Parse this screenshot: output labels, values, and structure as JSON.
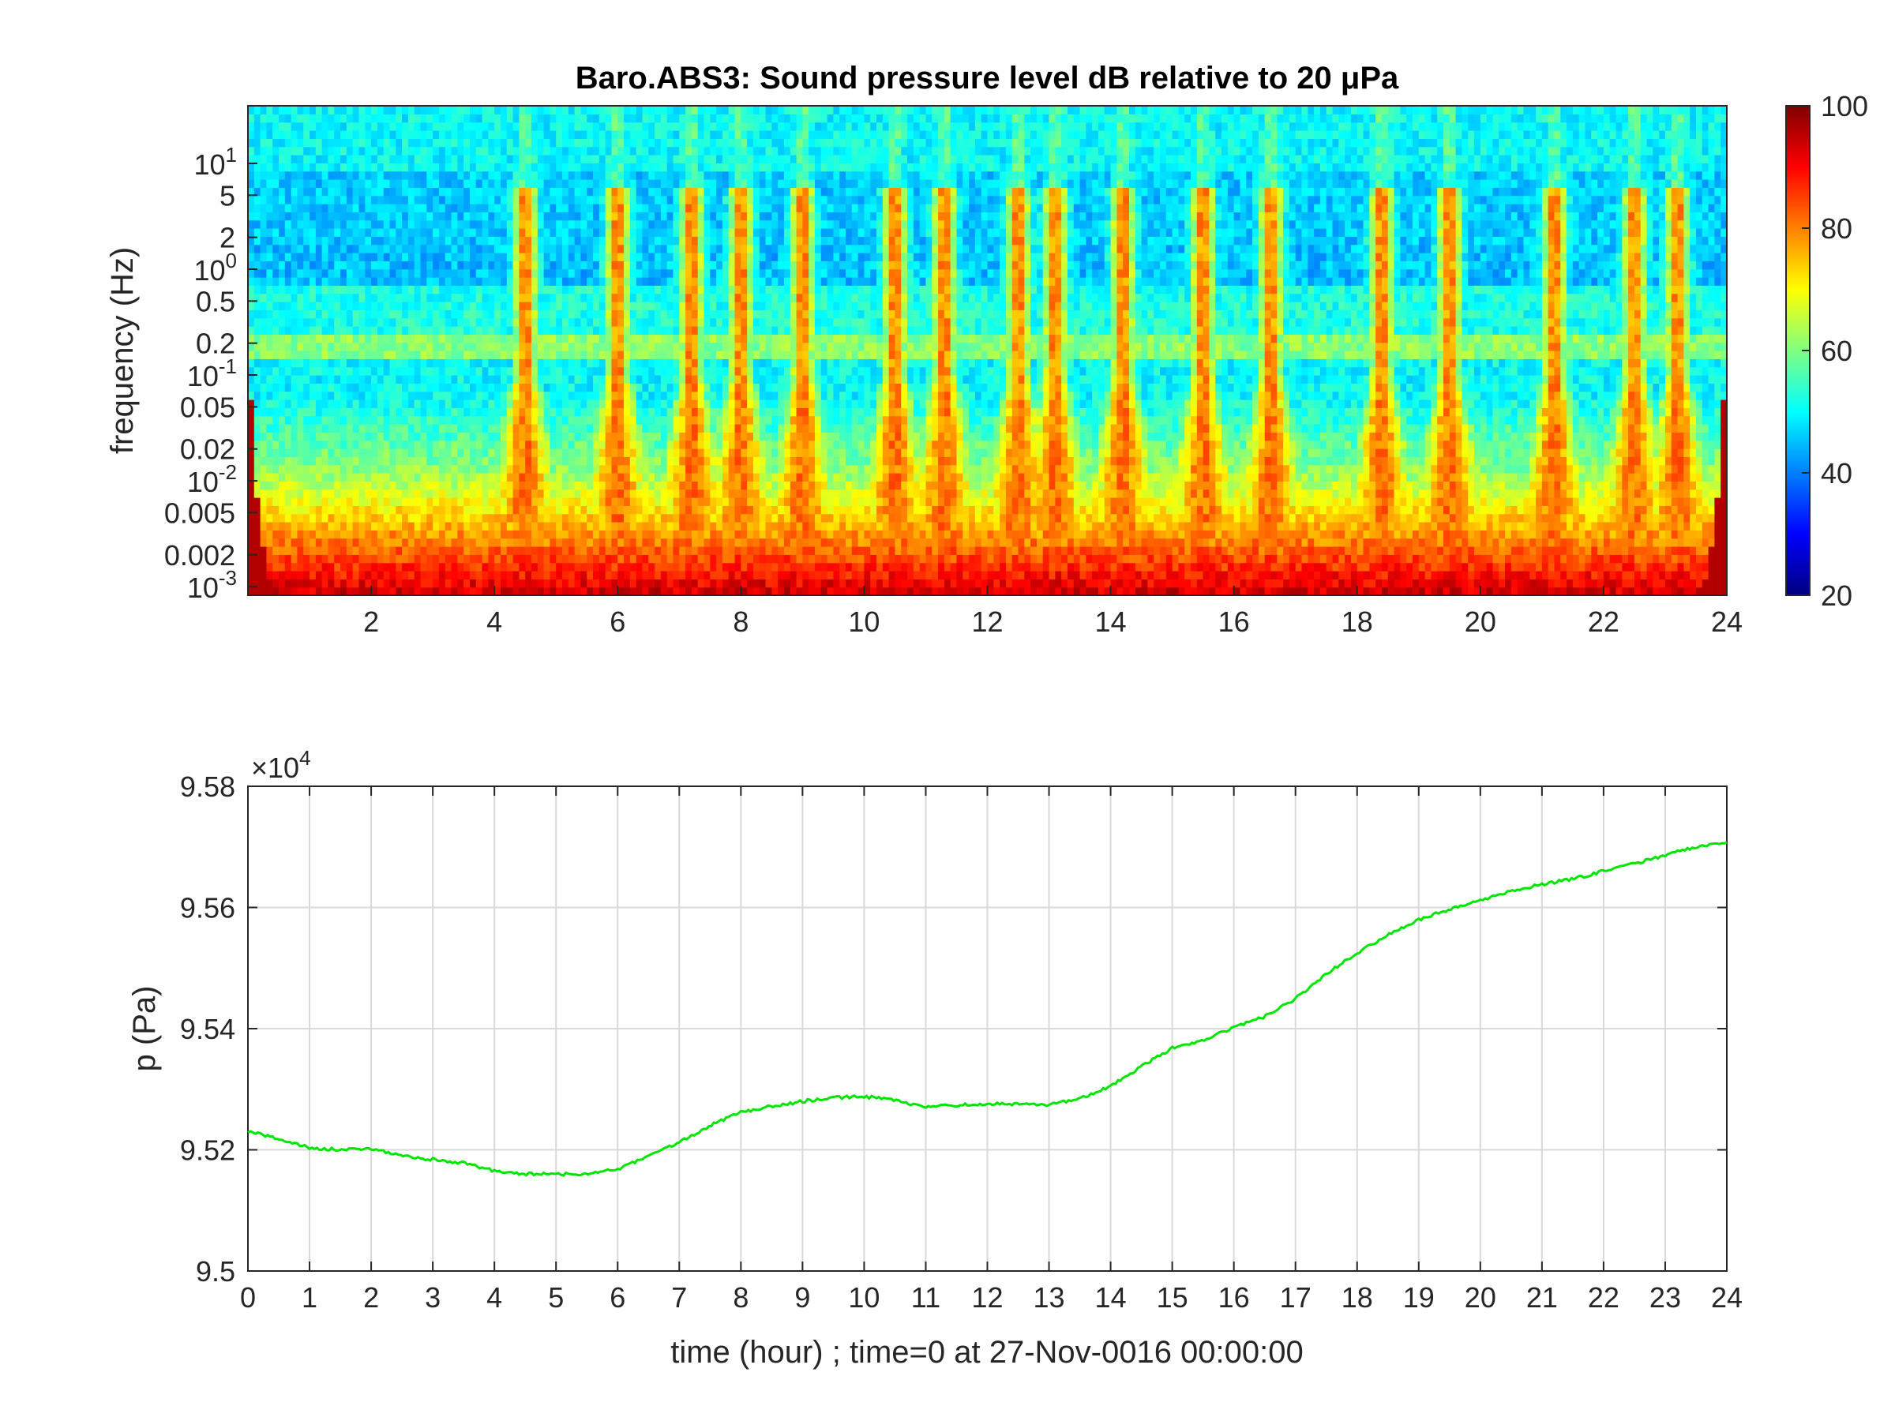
{
  "chart_data": [
    {
      "type": "heatmap",
      "title": "Baro.ABS3: Sound pressure level dB relative to 20 μPa",
      "xlabel": "",
      "ylabel": "frequency (Hz)",
      "y_scale": "log",
      "xlim": [
        0,
        24
      ],
      "ylim": [
        0.00083,
        35
      ],
      "x_ticks": [
        "2",
        "4",
        "6",
        "8",
        "10",
        "12",
        "14",
        "16",
        "18",
        "20",
        "22",
        "24"
      ],
      "y_ticks": [
        {
          "value": 0.001,
          "base": "10",
          "exp": "-3"
        },
        {
          "value": 0.002,
          "label": "0.002"
        },
        {
          "value": 0.005,
          "label": "0.005"
        },
        {
          "value": 0.01,
          "base": "10",
          "exp": "-2"
        },
        {
          "value": 0.02,
          "label": "0.02"
        },
        {
          "value": 0.05,
          "label": "0.05"
        },
        {
          "value": 0.1,
          "base": "10",
          "exp": "-1"
        },
        {
          "value": 0.2,
          "label": "0.2"
        },
        {
          "value": 0.5,
          "label": "0.5"
        },
        {
          "value": 1,
          "base": "10",
          "exp": "0"
        },
        {
          "value": 2,
          "label": "2"
        },
        {
          "value": 5,
          "label": "5"
        },
        {
          "value": 10,
          "base": "10",
          "exp": "1"
        }
      ],
      "colormap": "jet",
      "colorbar": {
        "min": 20,
        "max": 100,
        "ticks": [
          "100",
          "80",
          "60",
          "40",
          "20"
        ]
      },
      "background_level_db": 50,
      "event_hours": [
        4.5,
        6,
        7.2,
        8,
        9,
        10.5,
        11.3,
        12.5,
        13.1,
        14.2,
        15.5,
        16.6,
        18.4,
        19.5,
        21.2,
        22.5,
        23.2
      ]
    },
    {
      "type": "line",
      "xlabel": "time (hour) ; time=0 at 27-Nov-0016 00:00:00",
      "ylabel": "p (Pa)",
      "xlim": [
        0,
        24
      ],
      "ylim": [
        95000,
        95800
      ],
      "y_multiplier": {
        "base": "×10",
        "exp": "4"
      },
      "x_ticks": [
        "0",
        "1",
        "2",
        "3",
        "4",
        "5",
        "6",
        "7",
        "8",
        "9",
        "10",
        "11",
        "12",
        "13",
        "14",
        "15",
        "16",
        "17",
        "18",
        "19",
        "20",
        "21",
        "22",
        "23",
        "24"
      ],
      "y_ticks": [
        "9.5",
        "9.52",
        "9.54",
        "9.56",
        "9.58"
      ],
      "grid": true,
      "color": "#00e600",
      "x": [
        0,
        0.5,
        1,
        1.5,
        2,
        2.5,
        3,
        3.5,
        4,
        4.5,
        5,
        5.5,
        6,
        6.5,
        7,
        7.5,
        8,
        8.5,
        9,
        9.5,
        10,
        10.5,
        11,
        11.5,
        12,
        12.5,
        13,
        13.5,
        14,
        14.5,
        15,
        15.5,
        16,
        16.5,
        17,
        17.5,
        18,
        18.5,
        19,
        19.5,
        20,
        20.5,
        21,
        21.5,
        22,
        22.5,
        23,
        23.5,
        24
      ],
      "y": [
        95230,
        95218,
        95203,
        95200,
        95202,
        95190,
        95184,
        95178,
        95165,
        95160,
        95160,
        95160,
        95168,
        95190,
        95212,
        95240,
        95262,
        95272,
        95280,
        95286,
        95288,
        95282,
        95270,
        95274,
        95276,
        95275,
        95274,
        95285,
        95305,
        95338,
        95368,
        95380,
        95402,
        95420,
        95450,
        95490,
        95525,
        95555,
        95580,
        95597,
        95612,
        95628,
        95638,
        95647,
        95660,
        95672,
        95686,
        95700,
        95706
      ]
    }
  ]
}
